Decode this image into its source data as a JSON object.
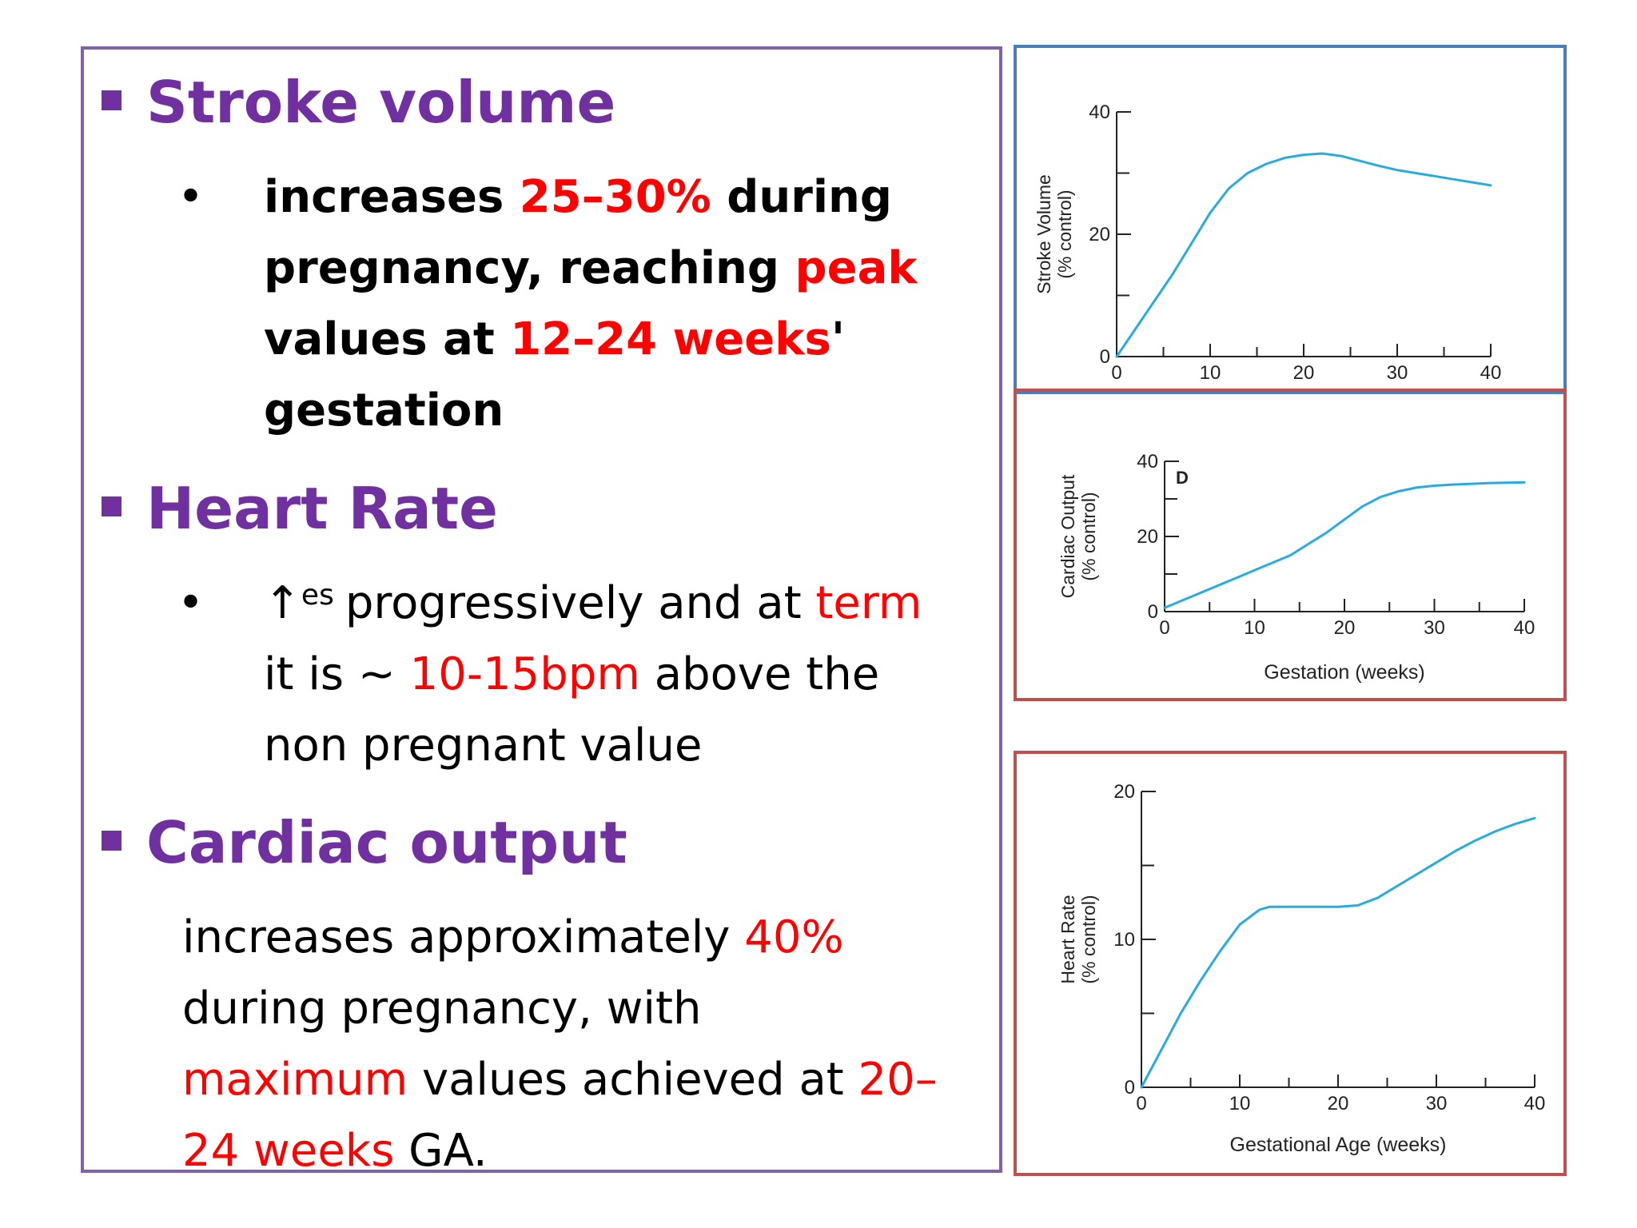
{
  "sections": {
    "stroke_volume": {
      "heading": "Stroke volume",
      "parts": [
        {
          "text": "increases ",
          "hl": false
        },
        {
          "text": "25–30%",
          "hl": true
        },
        {
          "text": " during",
          "hl": false
        },
        {
          "text": "pregnancy, reaching ",
          "hl": false
        },
        {
          "text": "peak",
          "hl": true
        },
        {
          "text": "values at ",
          "hl": false
        },
        {
          "text": "12–24 weeks",
          "hl": true
        },
        {
          "text": "'",
          "hl": false
        },
        {
          "text": "gestation",
          "hl": false
        }
      ]
    },
    "heart_rate": {
      "heading": "Heart Rate",
      "arrow": "↑",
      "arrow_sup": "es",
      "parts": [
        {
          "text": "progressively and at ",
          "hl": false
        },
        {
          "text": "term",
          "hl": true
        },
        {
          "text": "it is ~ ",
          "hl": false
        },
        {
          "text": "10-15bpm",
          "hl": true
        },
        {
          "text": " above the",
          "hl": false
        },
        {
          "text": "non pregnant value",
          "hl": false
        }
      ]
    },
    "cardiac_output": {
      "heading": "Cardiac output",
      "parts": [
        {
          "text": "increases approximately ",
          "hl": false
        },
        {
          "text": "40%",
          "hl": true
        },
        {
          "text": "during pregnancy, with",
          "hl": false
        },
        {
          "text": "maximum",
          "hl": true
        },
        {
          "text": " values achieved at ",
          "hl": false
        },
        {
          "text": "20–",
          "hl": true
        },
        {
          "text": "24 weeks",
          "hl": true
        },
        {
          "text": " GA.",
          "hl": false
        }
      ]
    }
  },
  "colors": {
    "heading": "#7030a0",
    "highlight": "#ff0000",
    "body": "#000000",
    "text_border": "#7f62a8",
    "chart_border_blue": "#4a7ebb",
    "chart_border_red": "#c0504d",
    "curve": "#29abe2"
  },
  "chart_data": [
    {
      "id": "stroke-volume",
      "type": "line",
      "title": "",
      "xlabel": "",
      "ylabel": "Stroke Volume",
      "ylabel2": "(% control)",
      "panel_letter": "",
      "xlim": [
        0,
        40
      ],
      "ylim": [
        0,
        40
      ],
      "xticks": [
        0,
        10,
        20,
        30,
        40
      ],
      "yticks": [
        0,
        20,
        40
      ],
      "x": [
        0,
        2,
        4,
        6,
        8,
        10,
        12,
        14,
        16,
        18,
        20,
        22,
        24,
        26,
        28,
        30,
        32,
        34,
        36,
        38,
        40
      ],
      "y": [
        0,
        4.5,
        9,
        13.5,
        18.5,
        23.5,
        27.5,
        30,
        31.5,
        32.5,
        33,
        33.2,
        32.8,
        32,
        31.2,
        30.5,
        30,
        29.5,
        29,
        28.5,
        28
      ]
    },
    {
      "id": "cardiac-output",
      "type": "line",
      "title": "",
      "xlabel": "Gestation (weeks)",
      "ylabel": "Cardiac Output",
      "ylabel2": "(% control)",
      "panel_letter": "D",
      "xlim": [
        0,
        40
      ],
      "ylim": [
        0,
        40
      ],
      "xticks": [
        0,
        10,
        20,
        30,
        40
      ],
      "yticks": [
        0,
        20,
        40
      ],
      "x": [
        0,
        2,
        4,
        6,
        8,
        10,
        12,
        14,
        16,
        18,
        20,
        22,
        24,
        26,
        28,
        30,
        32,
        34,
        36,
        38,
        40
      ],
      "y": [
        1,
        3,
        5,
        7,
        9,
        11,
        13,
        15,
        18,
        21,
        24.5,
        28,
        30.5,
        32,
        33,
        33.5,
        33.8,
        34,
        34.2,
        34.3,
        34.4
      ]
    },
    {
      "id": "heart-rate",
      "type": "line",
      "title": "",
      "xlabel": "Gestational Age (weeks)",
      "ylabel": "Heart Rate",
      "ylabel2": "(% control)",
      "panel_letter": "",
      "xlim": [
        0,
        40
      ],
      "ylim": [
        0,
        20
      ],
      "xticks": [
        0,
        10,
        20,
        30,
        40
      ],
      "yticks": [
        0,
        10,
        20
      ],
      "x": [
        0,
        2,
        4,
        6,
        8,
        10,
        12,
        13,
        14,
        16,
        18,
        20,
        22,
        24,
        26,
        28,
        30,
        32,
        34,
        36,
        38,
        40
      ],
      "y": [
        0,
        2.5,
        5,
        7.2,
        9.2,
        11,
        12,
        12.2,
        12.2,
        12.2,
        12.2,
        12.2,
        12.3,
        12.8,
        13.6,
        14.4,
        15.2,
        16,
        16.7,
        17.3,
        17.8,
        18.2
      ]
    }
  ]
}
